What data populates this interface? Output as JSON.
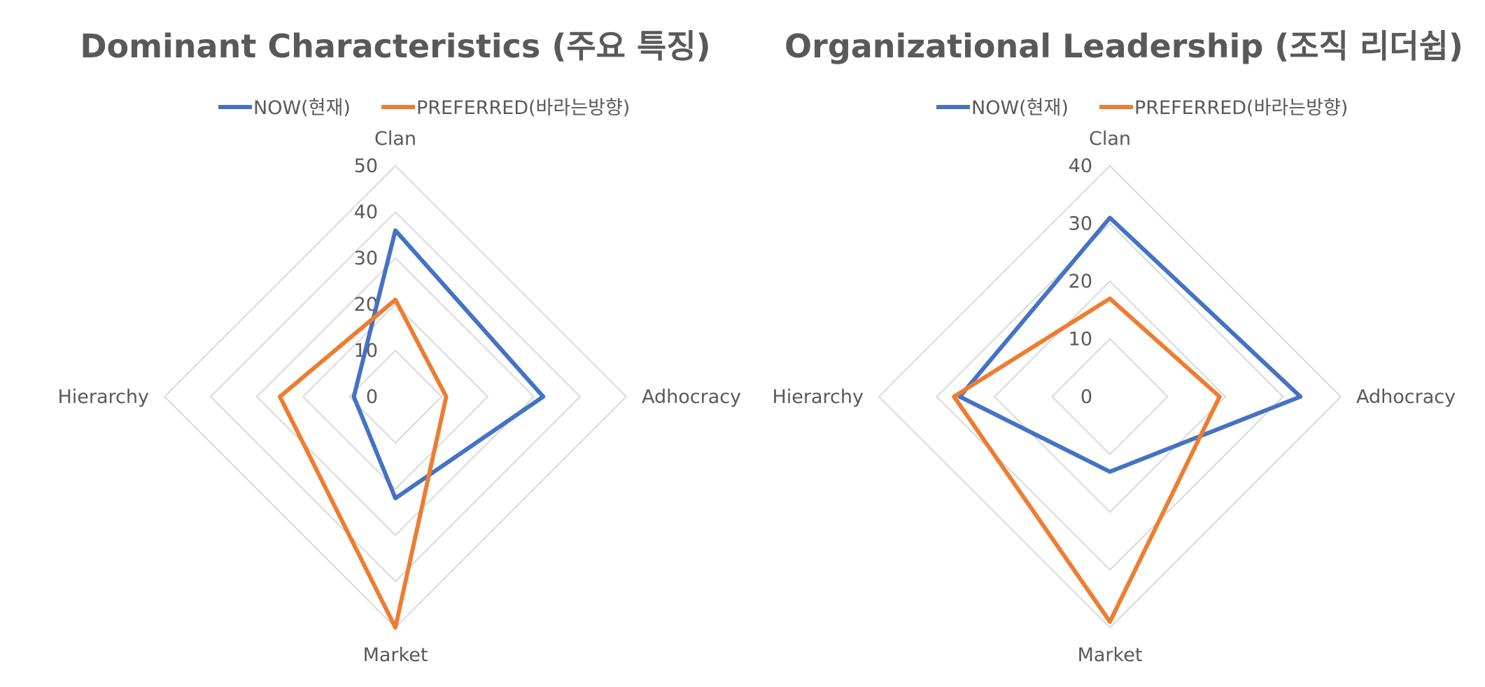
{
  "colors": {
    "now": "#4472C4",
    "preferred": "#ED7D31",
    "grid": "#d9d9d9",
    "text": "#595959"
  },
  "chart_data": [
    {
      "type": "radar",
      "title": "Dominant Characteristics (주요 특징)",
      "axes": [
        "Clan",
        "Adhocracy",
        "Market",
        "Hierarchy"
      ],
      "rlim": [
        0,
        50
      ],
      "ticks": [
        "0",
        "10",
        "20",
        "30",
        "40",
        "50"
      ],
      "tick_values": [
        0,
        10,
        20,
        30,
        40,
        50
      ],
      "legend_position": "top",
      "grid": true,
      "series": [
        {
          "name": "NOW(현재)",
          "values": [
            36,
            32,
            22,
            9
          ]
        },
        {
          "name": "PREFERRED(바라는방향)",
          "values": [
            21,
            11,
            50,
            25
          ]
        }
      ]
    },
    {
      "type": "radar",
      "title": "Organizational Leadership (조직 리더쉽)",
      "axes": [
        "Clan",
        "Adhocracy",
        "Market",
        "Hierarchy"
      ],
      "rlim": [
        0,
        40
      ],
      "ticks": [
        "0",
        "10",
        "20",
        "30",
        "40"
      ],
      "tick_values": [
        0,
        10,
        20,
        30,
        40
      ],
      "legend_position": "top",
      "grid": true,
      "series": [
        {
          "name": "NOW(현재)",
          "values": [
            31,
            33,
            13,
            26
          ]
        },
        {
          "name": "PREFERRED(바라는방향)",
          "values": [
            17,
            19,
            39,
            27
          ]
        }
      ]
    }
  ]
}
